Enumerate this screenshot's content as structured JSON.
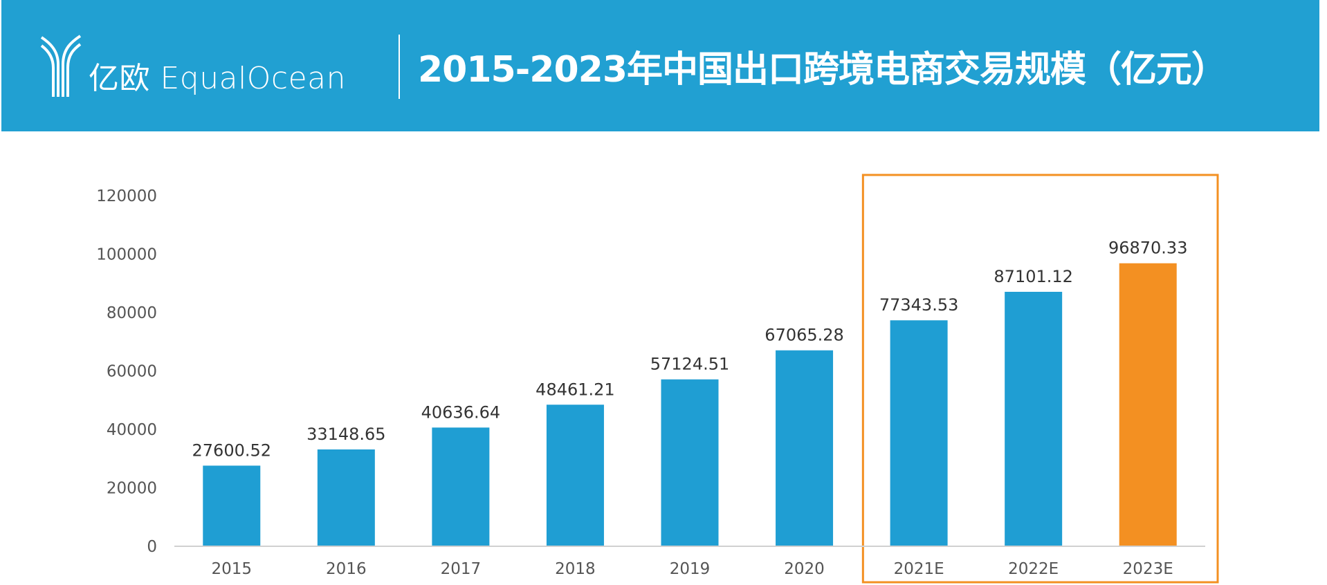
{
  "header": {
    "logo_text": "亿欧 EqualOcean",
    "title": "2015-2023年中国出口跨境电商交易规模（亿元）"
  },
  "colors": {
    "header": "#21A0D2",
    "bar": "#1F9ED3",
    "highlight_bar": "#F39022",
    "highlight_box": "#F39022"
  },
  "chart_data": {
    "type": "bar",
    "title": "2015-2023年中国出口跨境电商交易规模（亿元）",
    "categories": [
      "2015",
      "2016",
      "2017",
      "2018",
      "2019",
      "2020",
      "2021E",
      "2022E",
      "2023E"
    ],
    "values": [
      27600.52,
      33148.65,
      40636.64,
      48461.21,
      57124.51,
      67065.28,
      77343.53,
      87101.12,
      96870.33
    ],
    "data_labels": [
      "27600.52",
      "33148.65",
      "40636.64",
      "48461.21",
      "57124.51",
      "67065.28",
      "77343.53",
      "87101.12",
      "96870.33"
    ],
    "highlighted": [
      "2023E"
    ],
    "boxed_categories": [
      "2021E",
      "2022E",
      "2023E"
    ],
    "ylim": [
      0,
      120000
    ],
    "yticks": [
      "0",
      "20000",
      "40000",
      "60000",
      "80000",
      "100000",
      "120000"
    ],
    "grid": false,
    "legend": "none"
  }
}
